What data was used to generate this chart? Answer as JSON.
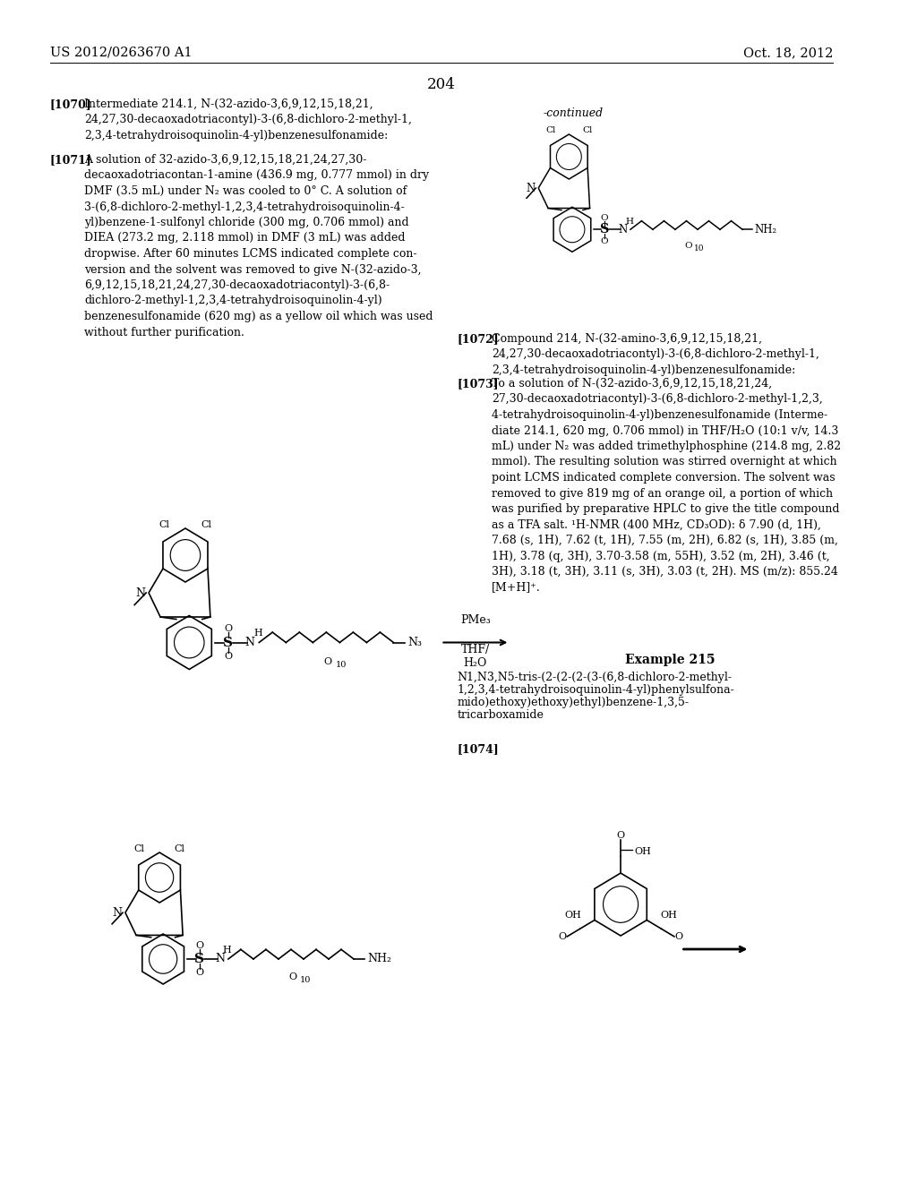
{
  "bg_color": "#ffffff",
  "header_left": "US 2012/0263670 A1",
  "header_right": "Oct. 18, 2012",
  "page_number": "204",
  "continued_label": "-continued",
  "para_1070_bold": "[1070]",
  "para_1070_text": "Intermediate 214.1, N-(32-azido-3,6,9,12,15,18,21,\n24,27,30-decaoxadotriacontyl)-3-(6,8-dichloro-2-methyl-1,\n2,3,4-tetrahydroisoquinolin-4-yl)benzenesulfonamide:",
  "para_1071_bold": "[1071]",
  "para_1071_text": "A solution of 32-azido-3,6,9,12,15,18,21,24,27,30-\ndecaoxadotriacontan-1-amine (436.9 mg, 0.777 mmol) in dry\nDMF (3.5 mL) under N₂ was cooled to 0° C. A solution of\n3-(6,8-dichloro-2-methyl-1,2,3,4-tetrahydroisoquinolin-4-\nyl)benzene-1-sulfonyl chloride (300 mg, 0.706 mmol) and\nDIEA (273.2 mg, 2.118 mmol) in DMF (3 mL) was added\ndropwise. After 60 minutes LCMS indicated complete con-\nversion and the solvent was removed to give N-(32-azido-3,\n6,9,12,15,18,21,24,27,30-decaoxadotriacontyl)-3-(6,8-\ndichloro-2-methyl-1,2,3,4-tetrahydroisoquinolin-4-yl)\nbenzenesulfonamide (620 mg) as a yellow oil which was used\nwithout further purification.",
  "para_1072_bold": "[1072]",
  "para_1072_text": "Compound 214, N-(32-amino-3,6,9,12,15,18,21,\n24,27,30-decaoxadotriacontyl)-3-(6,8-dichloro-2-methyl-1,\n2,3,4-tetrahydroisoquinolin-4-yl)benzenesulfonamide:",
  "para_1073_bold": "[1073]",
  "para_1073_text": "To a solution of N-(32-azido-3,6,9,12,15,18,21,24,\n27,30-decaoxadotriacontyl)-3-(6,8-dichloro-2-methyl-1,2,3,\n4-tetrahydroisoquinolin-4-yl)benzenesulfonamide (Interme-\ndiate 214.1, 620 mg, 0.706 mmol) in THF/H₂O (10:1 v/v, 14.3\nmL) under N₂ was added trimethylphosphine (214.8 mg, 2.82\nmmol). The resulting solution was stirred overnight at which\npoint LCMS indicated complete conversion. The solvent was\nremoved to give 819 mg of an orange oil, a portion of which\nwas purified by preparative HPLC to give the title compound\nas a TFA salt. ¹H-NMR (400 MHz, CD₃OD): δ 7.90 (d, 1H),\n7.68 (s, 1H), 7.62 (t, 1H), 7.55 (m, 2H), 6.82 (s, 1H), 3.85 (m,\n1H), 3.78 (q, 3H), 3.70-3.58 (m, 55H), 3.52 (m, 2H), 3.46 (t,\n3H), 3.18 (t, 3H), 3.11 (s, 3H), 3.03 (t, 2H). MS (m/z): 855.24\n[M+H]⁺.",
  "example_215_title": "Example 215",
  "example_215_line1": "N1,N3,N5-tris-(2-(2-(2-(3-(6,8-dichloro-2-methyl-",
  "example_215_line2": "1,2,3,4-tetrahydroisoquinolin-4-yl)phenylsulfona-",
  "example_215_line3": "mido)ethoxy)ethoxy)ethyl)benzene-1,3,5-",
  "example_215_line4": "tricarboxamide",
  "para_1074_bold": "[1074]"
}
